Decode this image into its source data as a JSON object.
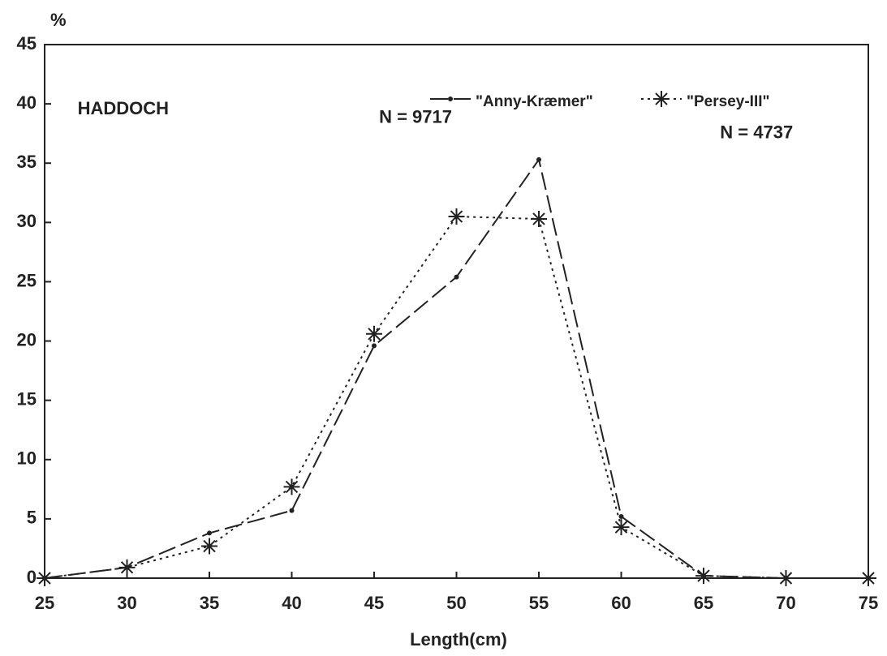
{
  "chart_data": {
    "type": "line",
    "ylabel": "%",
    "xlabel": "Length(cm)",
    "annotations": [
      {
        "text": "HADDOCH",
        "x": 27,
        "y": 39.5
      },
      {
        "text": "N = 9717",
        "x": 45.3,
        "y": 38.8
      },
      {
        "text": "N = 4737",
        "x": 66,
        "y": 37.5
      }
    ],
    "x": [
      25,
      30,
      35,
      40,
      45,
      50,
      55,
      60,
      65,
      70,
      75
    ],
    "series": [
      {
        "name": "\"Anny-Kræmer\"",
        "color": "#222222",
        "linestyle": "dashed",
        "marker": "dot",
        "values": [
          0,
          0.9,
          3.8,
          5.7,
          19.6,
          25.4,
          35.3,
          5.2,
          0.2,
          0,
          0
        ]
      },
      {
        "name": "\"Persey-III\"",
        "color": "#222222",
        "linestyle": "dotted",
        "marker": "star",
        "values": [
          0,
          0.9,
          2.7,
          7.7,
          20.6,
          30.5,
          30.3,
          4.3,
          0.2,
          0,
          0
        ]
      }
    ],
    "xlim": [
      25,
      75
    ],
    "xticks": [
      25,
      30,
      35,
      40,
      45,
      50,
      55,
      60,
      65,
      70,
      75
    ],
    "ylim": [
      0,
      45
    ],
    "yticks": [
      0,
      5,
      10,
      15,
      20,
      25,
      30,
      35,
      40,
      45
    ],
    "legend": "top-right",
    "grid": false
  }
}
